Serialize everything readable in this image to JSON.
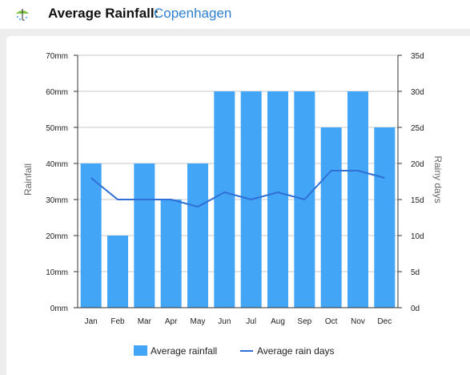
{
  "header": {
    "title": "Average Rainfall:",
    "city": "Copenhagen",
    "icon": "umbrella-icon"
  },
  "chart_data": {
    "type": "bar",
    "categories": [
      "Jan",
      "Feb",
      "Mar",
      "Apr",
      "May",
      "Jun",
      "Jul",
      "Aug",
      "Sep",
      "Oct",
      "Nov",
      "Dec"
    ],
    "series": [
      {
        "name": "Average rainfall",
        "type": "bar",
        "axis": "left",
        "values": [
          40,
          20,
          40,
          30,
          40,
          60,
          60,
          60,
          60,
          50,
          60,
          50
        ],
        "color": "#42a5f5"
      },
      {
        "name": "Average rain days",
        "type": "line",
        "axis": "right",
        "values": [
          18,
          15,
          15,
          15,
          14,
          16,
          15,
          16,
          15,
          19,
          19,
          18
        ],
        "color": "#2f6fd6"
      }
    ],
    "ylabel": "Rainfall",
    "ylabel_right": "Rainy days",
    "ylim": [
      0,
      70
    ],
    "ylim_right": [
      0,
      35
    ],
    "yticks": [
      "0mm",
      "10mm",
      "20mm",
      "30mm",
      "40mm",
      "50mm",
      "60mm",
      "70mm"
    ],
    "yticks_right": [
      "0d",
      "5d",
      "10d",
      "15d",
      "20d",
      "25d",
      "30d",
      "35d"
    ],
    "grid": true,
    "legend": "bottom"
  }
}
